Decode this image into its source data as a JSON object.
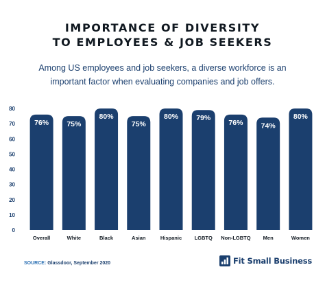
{
  "header": {
    "title_line1": "IMPORTANCE OF DIVERSITY",
    "title_line2": "TO EMPLOYEES & JOB SEEKERS",
    "subtitle_line1": "Among US employees and job seekers, a diverse workforce is an",
    "subtitle_line2": "important factor when evaluating companies and job offers."
  },
  "chart_data": {
    "type": "bar",
    "categories": [
      "Overall",
      "White",
      "Black",
      "Asian",
      "Hispanic",
      "LGBTQ",
      "Non-LGBTQ",
      "Men",
      "Women"
    ],
    "values": [
      76,
      75,
      80,
      75,
      80,
      79,
      76,
      74,
      80
    ],
    "data_labels": [
      "76%",
      "75%",
      "80%",
      "75%",
      "80%",
      "79%",
      "76%",
      "74%",
      "80%"
    ],
    "ylim": [
      0,
      80
    ],
    "yticks": [
      0,
      10,
      20,
      30,
      40,
      50,
      60,
      70,
      80
    ],
    "grid": false,
    "legend": "none",
    "bar_color": "#1b3f6e",
    "tick_color": "#1b3f6e"
  },
  "footer": {
    "source_label": "SOURCE:",
    "source_text": "Glassdoor, September 2020",
    "brand_name": "Fit Small Business",
    "brand_icon": "chart-bars-icon",
    "brand_color": "#1b3f6e"
  }
}
